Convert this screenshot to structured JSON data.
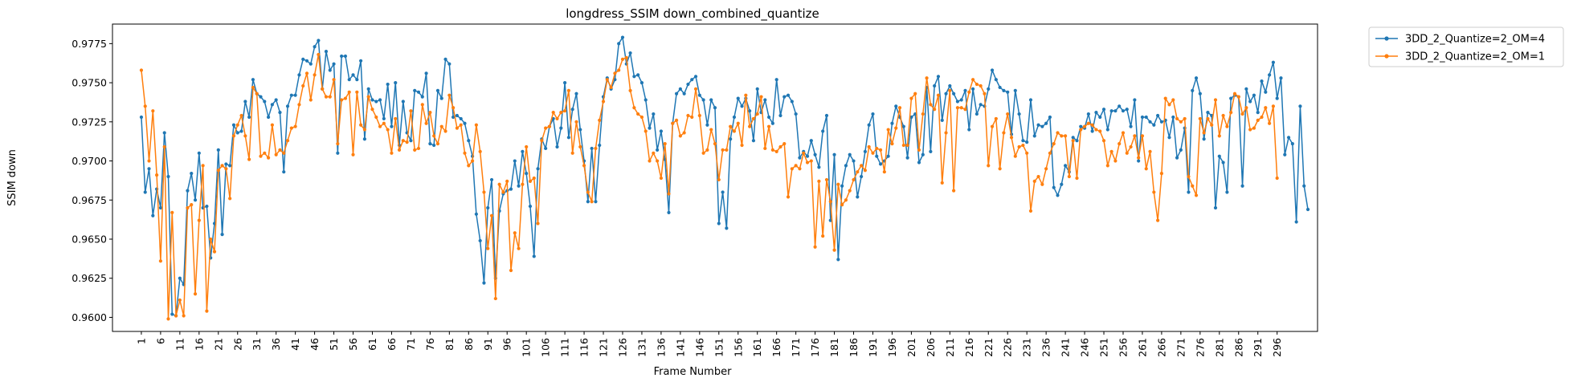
{
  "chart_data": {
    "type": "line",
    "title": "longdress_SSIM down_combined_quantize",
    "xlabel": "Frame Number",
    "ylabel": "SSIM down",
    "xlim": [
      -6.5,
      306.5
    ],
    "ylim": [
      0.9591,
      0.97875
    ],
    "x_ticks": [
      1,
      6,
      11,
      16,
      21,
      26,
      31,
      36,
      41,
      46,
      51,
      56,
      61,
      66,
      71,
      76,
      81,
      86,
      91,
      96,
      101,
      106,
      111,
      116,
      121,
      126,
      131,
      136,
      141,
      146,
      151,
      156,
      161,
      166,
      171,
      176,
      181,
      186,
      191,
      196,
      201,
      206,
      211,
      216,
      221,
      226,
      231,
      236,
      241,
      246,
      251,
      256,
      261,
      266,
      271,
      276,
      281,
      286,
      291,
      296
    ],
    "x_tick_labels": [
      "1",
      "6",
      "11",
      "16",
      "21",
      "26",
      "31",
      "36",
      "41",
      "46",
      "51",
      "56",
      "61",
      "66",
      "71",
      "76",
      "81",
      "86",
      "91",
      "96",
      "101",
      "106",
      "111",
      "116",
      "121",
      "126",
      "131",
      "136",
      "141",
      "146",
      "151",
      "156",
      "161",
      "166",
      "171",
      "176",
      "181",
      "186",
      "191",
      "196",
      "201",
      "206",
      "211",
      "216",
      "221",
      "226",
      "231",
      "236",
      "241",
      "246",
      "251",
      "256",
      "261",
      "266",
      "271",
      "276",
      "281",
      "286",
      "291",
      "296"
    ],
    "y_ticks": [
      0.96,
      0.9625,
      0.965,
      0.9675,
      0.97,
      0.9725,
      0.975,
      0.9775
    ],
    "y_tick_labels": [
      "0.9600",
      "0.9625",
      "0.9650",
      "0.9675",
      "0.9700",
      "0.9725",
      "0.9750",
      "0.9775"
    ],
    "grid": false,
    "legend_position": "outside-top-right",
    "x_start": 1,
    "series": [
      {
        "name": "3DD_2_Quantize=2_OM=4",
        "color": "#1f77b4",
        "values": [
          0.9728,
          0.968,
          0.9695,
          0.9665,
          0.9682,
          0.967,
          0.9718,
          0.969,
          0.9602,
          0.9601,
          0.9625,
          0.9621,
          0.9681,
          0.9692,
          0.9675,
          0.9705,
          0.967,
          0.9671,
          0.9638,
          0.966,
          0.9707,
          0.9653,
          0.9698,
          0.9697,
          0.9723,
          0.9718,
          0.9719,
          0.9738,
          0.9728,
          0.9752,
          0.9743,
          0.9741,
          0.9738,
          0.9728,
          0.9736,
          0.9739,
          0.9731,
          0.9693,
          0.9735,
          0.9742,
          0.9742,
          0.9755,
          0.9765,
          0.9764,
          0.9762,
          0.9773,
          0.9777,
          0.9746,
          0.977,
          0.9758,
          0.9762,
          0.9705,
          0.9767,
          0.9767,
          0.9752,
          0.9755,
          0.9752,
          0.9764,
          0.9714,
          0.9746,
          0.9739,
          0.9738,
          0.9739,
          0.9727,
          0.9749,
          0.9722,
          0.975,
          0.971,
          0.9738,
          0.9718,
          0.9713,
          0.9745,
          0.9744,
          0.9741,
          0.9756,
          0.9711,
          0.971,
          0.9745,
          0.974,
          0.9765,
          0.9762,
          0.9728,
          0.9729,
          0.9727,
          0.9724,
          0.9713,
          0.9703,
          0.9666,
          0.9649,
          0.9622,
          0.967,
          0.9688,
          0.9625,
          0.9668,
          0.9679,
          0.9681,
          0.9682,
          0.97,
          0.9684,
          0.9706,
          0.9692,
          0.9671,
          0.9639,
          0.9695,
          0.9714,
          0.9708,
          0.9722,
          0.9727,
          0.9709,
          0.9721,
          0.975,
          0.9715,
          0.9733,
          0.9743,
          0.972,
          0.97,
          0.9674,
          0.9708,
          0.9674,
          0.971,
          0.9741,
          0.9753,
          0.9746,
          0.9752,
          0.9775,
          0.9779,
          0.9762,
          0.9769,
          0.9754,
          0.9755,
          0.975,
          0.9739,
          0.9721,
          0.973,
          0.9707,
          0.9719,
          0.9701,
          0.9667,
          0.9724,
          0.9743,
          0.9746,
          0.9743,
          0.9749,
          0.9752,
          0.9754,
          0.9742,
          0.9739,
          0.9723,
          0.9739,
          0.9734,
          0.966,
          0.968,
          0.9657,
          0.9714,
          0.9728,
          0.974,
          0.9735,
          0.974,
          0.9732,
          0.9713,
          0.9746,
          0.9731,
          0.9739,
          0.9728,
          0.9724,
          0.9752,
          0.9729,
          0.9741,
          0.9742,
          0.9738,
          0.973,
          0.9702,
          0.9706,
          0.9703,
          0.9713,
          0.9704,
          0.9696,
          0.9719,
          0.9729,
          0.9662,
          0.9704,
          0.9637,
          0.9684,
          0.9697,
          0.9704,
          0.97,
          0.9677,
          0.969,
          0.9706,
          0.9723,
          0.973,
          0.9703,
          0.9698,
          0.97,
          0.9703,
          0.9724,
          0.9735,
          0.9728,
          0.9722,
          0.9702,
          0.9728,
          0.973,
          0.9699,
          0.9704,
          0.9747,
          0.9706,
          0.9748,
          0.9754,
          0.9726,
          0.9743,
          0.9748,
          0.9743,
          0.9738,
          0.9739,
          0.9745,
          0.972,
          0.9746,
          0.973,
          0.9736,
          0.9735,
          0.9746,
          0.9758,
          0.9752,
          0.9747,
          0.9745,
          0.9744,
          0.9717,
          0.9745,
          0.973,
          0.9713,
          0.9712,
          0.9739,
          0.9716,
          0.9723,
          0.9722,
          0.9724,
          0.9728,
          0.9683,
          0.9678,
          0.9685,
          0.9697,
          0.9693,
          0.9715,
          0.9713,
          0.9722,
          0.9721,
          0.973,
          0.9719,
          0.9731,
          0.9728,
          0.9733,
          0.972,
          0.9732,
          0.9732,
          0.9735,
          0.9732,
          0.9733,
          0.9722,
          0.9739,
          0.97,
          0.9728,
          0.9728,
          0.9725,
          0.9723,
          0.9729,
          0.9725,
          0.9726,
          0.9715,
          0.9728,
          0.9702,
          0.9707,
          0.9721,
          0.968,
          0.9745,
          0.9753,
          0.9743,
          0.9714,
          0.9731,
          0.9729,
          0.967,
          0.9703,
          0.9699,
          0.968,
          0.974,
          0.9742,
          0.9741,
          0.9684,
          0.9746,
          0.9738,
          0.9742,
          0.9731,
          0.9751,
          0.9744,
          0.9755,
          0.9763,
          0.974,
          0.9753,
          0.9704,
          0.9715,
          0.9711,
          0.9661,
          0.9735,
          0.9684,
          0.9669
        ]
      },
      {
        "name": "3DD_2_Quantize=2_OM=1",
        "color": "#ff7f0e",
        "values": [
          0.9758,
          0.9735,
          0.97,
          0.9732,
          0.9691,
          0.9636,
          0.9709,
          0.9599,
          0.9667,
          0.9601,
          0.9611,
          0.9601,
          0.967,
          0.9672,
          0.9615,
          0.9662,
          0.9697,
          0.9604,
          0.965,
          0.9642,
          0.9694,
          0.9697,
          0.9695,
          0.9676,
          0.9716,
          0.9723,
          0.9729,
          0.9716,
          0.9701,
          0.9747,
          0.9743,
          0.9703,
          0.9705,
          0.9702,
          0.9723,
          0.9704,
          0.9707,
          0.9705,
          0.9713,
          0.9721,
          0.9722,
          0.9736,
          0.9748,
          0.9756,
          0.9739,
          0.9755,
          0.9768,
          0.9746,
          0.9741,
          0.9741,
          0.9752,
          0.9711,
          0.9739,
          0.974,
          0.9744,
          0.9704,
          0.9744,
          0.9723,
          0.972,
          0.9741,
          0.9733,
          0.9728,
          0.9722,
          0.9724,
          0.972,
          0.9705,
          0.9727,
          0.9707,
          0.9713,
          0.9712,
          0.9732,
          0.9707,
          0.9708,
          0.9736,
          0.9724,
          0.9731,
          0.9716,
          0.9711,
          0.9722,
          0.9719,
          0.9742,
          0.9734,
          0.9721,
          0.9723,
          0.9705,
          0.9697,
          0.97,
          0.9723,
          0.9706,
          0.968,
          0.9644,
          0.9665,
          0.9612,
          0.9685,
          0.968,
          0.9687,
          0.963,
          0.9654,
          0.9644,
          0.9685,
          0.9709,
          0.9687,
          0.9689,
          0.966,
          0.9713,
          0.9721,
          0.9722,
          0.9731,
          0.9727,
          0.9731,
          0.9732,
          0.9745,
          0.9705,
          0.9725,
          0.9709,
          0.9697,
          0.968,
          0.9674,
          0.9708,
          0.9726,
          0.9738,
          0.9752,
          0.9747,
          0.9756,
          0.9758,
          0.9765,
          0.9766,
          0.9745,
          0.9734,
          0.973,
          0.9728,
          0.9719,
          0.97,
          0.9705,
          0.97,
          0.9689,
          0.9711,
          0.9679,
          0.9724,
          0.9726,
          0.9716,
          0.9718,
          0.9729,
          0.9728,
          0.9746,
          0.9729,
          0.9705,
          0.9707,
          0.972,
          0.9711,
          0.9688,
          0.9707,
          0.9707,
          0.9722,
          0.9719,
          0.9724,
          0.971,
          0.9742,
          0.9722,
          0.9727,
          0.973,
          0.9741,
          0.9708,
          0.9722,
          0.9707,
          0.9706,
          0.9709,
          0.9711,
          0.9677,
          0.9695,
          0.9697,
          0.9695,
          0.9705,
          0.9699,
          0.97,
          0.9645,
          0.9687,
          0.9652,
          0.9688,
          0.9674,
          0.9643,
          0.9685,
          0.9672,
          0.9675,
          0.9681,
          0.9688,
          0.9693,
          0.9697,
          0.9694,
          0.9709,
          0.9705,
          0.9708,
          0.9707,
          0.9693,
          0.972,
          0.9711,
          0.9721,
          0.9734,
          0.971,
          0.971,
          0.974,
          0.9743,
          0.9707,
          0.973,
          0.9753,
          0.9736,
          0.9733,
          0.9742,
          0.9686,
          0.9718,
          0.9745,
          0.9681,
          0.9734,
          0.9734,
          0.9733,
          0.9744,
          0.9752,
          0.9749,
          0.9748,
          0.9743,
          0.9697,
          0.9722,
          0.9727,
          0.9695,
          0.9718,
          0.973,
          0.9715,
          0.9703,
          0.9709,
          0.971,
          0.9705,
          0.9668,
          0.9687,
          0.969,
          0.9685,
          0.9695,
          0.9705,
          0.9711,
          0.9718,
          0.9716,
          0.9716,
          0.969,
          0.9713,
          0.9689,
          0.972,
          0.9722,
          0.9724,
          0.9723,
          0.972,
          0.9719,
          0.9713,
          0.9697,
          0.9706,
          0.97,
          0.9711,
          0.9718,
          0.9705,
          0.9709,
          0.9716,
          0.9702,
          0.9716,
          0.9695,
          0.9706,
          0.968,
          0.9662,
          0.9692,
          0.974,
          0.9736,
          0.9739,
          0.9727,
          0.9725,
          0.9727,
          0.969,
          0.9684,
          0.9678,
          0.9727,
          0.9718,
          0.9727,
          0.9723,
          0.9739,
          0.9716,
          0.9729,
          0.9722,
          0.9731,
          0.9743,
          0.9741,
          0.973,
          0.9734,
          0.972,
          0.9721,
          0.9726,
          0.9728,
          0.9734,
          0.9724,
          0.9735,
          0.9689
        ]
      }
    ]
  }
}
